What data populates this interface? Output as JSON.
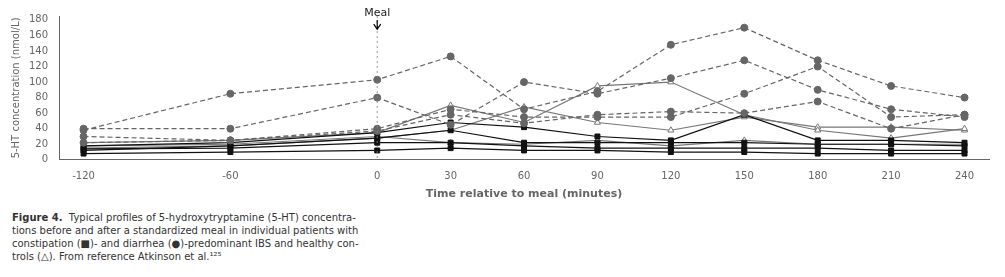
{
  "chart_data": {
    "type": "line",
    "xlabel": "Time relative to meal (minutes)",
    "ylabel": "5-HT concentration (nmol/L)",
    "xlim": [
      -130,
      250
    ],
    "ylim": [
      0,
      185
    ],
    "xticks": [
      -120,
      -60,
      0,
      30,
      60,
      90,
      120,
      150,
      180,
      210,
      240
    ],
    "yticks": [
      0,
      20,
      40,
      60,
      80,
      100,
      120,
      140,
      160,
      180
    ],
    "grid": false,
    "x": [
      -120,
      -60,
      0,
      30,
      60,
      90,
      120,
      150,
      180,
      210,
      240
    ],
    "series": [
      {
        "color": "#666666",
        "marker": "circle",
        "line_style": "dashed",
        "values": [
          38,
          85,
          103,
          133,
          65,
          88,
          148,
          170,
          128,
          95,
          80
        ]
      },
      {
        "color": "#666666",
        "marker": "circle",
        "line_style": "dashed",
        "values": [
          40,
          40,
          80,
          45,
          100,
          85,
          105,
          128,
          90,
          65,
          55
        ]
      },
      {
        "color": "#666666",
        "marker": "circle",
        "line_style": "dashed",
        "values": [
          30,
          25,
          40,
          65,
          55,
          55,
          55,
          85,
          120,
          55,
          58
        ]
      },
      {
        "color": "#666666",
        "marker": "circle",
        "line_style": "dashed",
        "values": [
          22,
          25,
          37,
          58,
          47,
          58,
          62,
          60,
          75,
          40,
          58
        ]
      },
      {
        "color": "#111111",
        "marker": "square",
        "line_style": "solid",
        "values": [
          18,
          22,
          35,
          48,
          42,
          30,
          25,
          58,
          25,
          25,
          22
        ]
      },
      {
        "color": "#111111",
        "marker": "square",
        "line_style": "solid",
        "values": [
          12,
          18,
          28,
          38,
          22,
          22,
          22,
          22,
          20,
          20,
          18
        ]
      },
      {
        "color": "#111111",
        "marker": "square",
        "line_style": "solid",
        "values": [
          8,
          10,
          12,
          15,
          12,
          12,
          10,
          10,
          8,
          8,
          8
        ]
      },
      {
        "color": "#111111",
        "marker": "square",
        "line_style": "solid",
        "values": [
          14,
          15,
          22,
          22,
          18,
          15,
          15,
          15,
          15,
          12,
          12
        ]
      },
      {
        "color": "#777777",
        "marker": "open_triangle",
        "line_style": "solid",
        "values": [
          22,
          25,
          35,
          70,
          48,
          95,
          100,
          58,
          38,
          28,
          40
        ]
      },
      {
        "color": "#777777",
        "marker": "open_triangle",
        "line_style": "solid",
        "values": [
          15,
          18,
          28,
          38,
          68,
          48,
          38,
          55,
          42,
          42,
          38
        ]
      },
      {
        "color": "#777777",
        "marker": "open_triangle",
        "line_style": "solid",
        "values": [
          18,
          20,
          30,
          22,
          20,
          25,
          18,
          25,
          20,
          20,
          20
        ]
      }
    ],
    "vlines": [
      0
    ],
    "annotations": [
      {
        "text": "Meal",
        "x": 0,
        "y": 181,
        "arrow_from": 180,
        "arrow_to": 168
      }
    ],
    "caption": {
      "label": "Figure 4.",
      "text": "  Typical profiles of 5-hydroxytryptamine (5-HT) concentra-\ntions before and after a standardized meal in individual patients with\nconstipation (■)- and diarrhea (●)-predominant IBS and healthy con-\ntrols (△). From reference Atkinson et al.¹²⁵"
    }
  }
}
